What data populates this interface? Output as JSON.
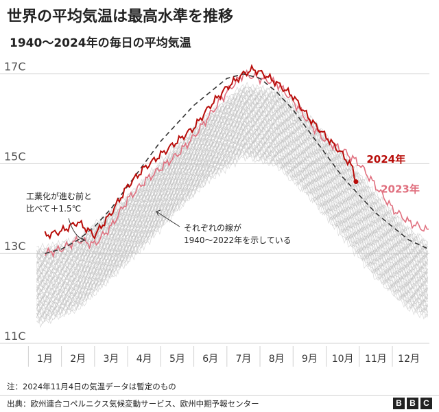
{
  "title": "世界の平均気温は最高水準を推移",
  "subtitle": "1940〜2024年の毎日の平均気温",
  "note": "注：2024年11月4日の気温データは暫定のもの",
  "source": "出典：欧州連合コペルニクス気候変動サービス、欧州中期予報センター",
  "logo": [
    "B",
    "B",
    "C"
  ],
  "chart_data": {
    "type": "line",
    "ylim": [
      11,
      17.3
    ],
    "yticks": [
      {
        "value": 11,
        "label": "11C"
      },
      {
        "value": 13,
        "label": "13C"
      },
      {
        "value": 15,
        "label": "15C"
      },
      {
        "value": 17,
        "label": "17C"
      }
    ],
    "months": [
      "1月",
      "2月",
      "3月",
      "4月",
      "5月",
      "6月",
      "7月",
      "8月",
      "9月",
      "10月",
      "11月",
      "12月"
    ],
    "grid": true,
    "colors": {
      "y2024": "#b80c09",
      "y2023": "#e0707f",
      "history": "#b8b8b8",
      "baseline": "#333333"
    },
    "series": [
      {
        "name": "2024年",
        "month_points": [
          [
            1,
            13.4
          ],
          [
            1.5,
            13.5
          ],
          [
            2,
            13.7
          ],
          [
            2.5,
            13.4
          ],
          [
            3,
            13.9
          ],
          [
            3.5,
            14.5
          ],
          [
            4,
            14.9
          ],
          [
            4.5,
            15.2
          ],
          [
            5,
            15.5
          ],
          [
            5.5,
            15.8
          ],
          [
            6,
            16.3
          ],
          [
            6.5,
            16.7
          ],
          [
            7,
            17.0
          ],
          [
            7.3,
            17.1
          ],
          [
            7.6,
            17.0
          ],
          [
            8,
            16.8
          ],
          [
            8.5,
            16.5
          ],
          [
            9,
            16.0
          ],
          [
            9.5,
            15.6
          ],
          [
            10,
            15.2
          ],
          [
            10.3,
            14.9
          ],
          [
            10.4,
            14.6
          ]
        ]
      },
      {
        "name": "2023年",
        "month_points": [
          [
            1,
            13.0
          ],
          [
            1.5,
            13.1
          ],
          [
            2,
            13.3
          ],
          [
            2.5,
            13.2
          ],
          [
            3,
            13.6
          ],
          [
            3.5,
            14.2
          ],
          [
            4,
            14.6
          ],
          [
            4.5,
            14.9
          ],
          [
            5,
            15.2
          ],
          [
            5.5,
            15.6
          ],
          [
            6,
            16.1
          ],
          [
            6.5,
            16.6
          ],
          [
            7,
            17.0
          ],
          [
            7.5,
            16.9
          ],
          [
            8,
            16.8
          ],
          [
            8.5,
            16.4
          ],
          [
            9,
            15.9
          ],
          [
            9.5,
            15.5
          ],
          [
            10,
            15.3
          ],
          [
            10.5,
            15.0
          ],
          [
            11,
            14.5
          ],
          [
            11.5,
            14.0
          ],
          [
            12,
            13.7
          ],
          [
            12.6,
            13.5
          ]
        ]
      },
      {
        "name": "工業化前と比べて＋1.5℃",
        "month_points": [
          [
            1,
            13.0
          ],
          [
            1.5,
            13.1
          ],
          [
            2,
            13.3
          ],
          [
            2.5,
            13.6
          ],
          [
            3,
            14.0
          ],
          [
            3.5,
            14.5
          ],
          [
            4,
            15.0
          ],
          [
            4.5,
            15.5
          ],
          [
            5,
            15.9
          ],
          [
            5.5,
            16.3
          ],
          [
            6,
            16.6
          ],
          [
            6.5,
            16.9
          ],
          [
            7,
            17.0
          ],
          [
            7.5,
            16.9
          ],
          [
            8,
            16.6
          ],
          [
            8.5,
            16.2
          ],
          [
            9,
            15.7
          ],
          [
            9.5,
            15.2
          ],
          [
            10,
            14.7
          ],
          [
            10.5,
            14.3
          ],
          [
            11,
            13.9
          ],
          [
            11.5,
            13.6
          ],
          [
            12,
            13.3
          ],
          [
            12.6,
            13.1
          ]
        ]
      }
    ],
    "history": {
      "years": "1940〜2022年",
      "envelope_low": [
        [
          1,
          11.5
        ],
        [
          2,
          11.8
        ],
        [
          3,
          12.5
        ],
        [
          4,
          13.2
        ],
        [
          5,
          14.0
        ],
        [
          6,
          14.7
        ],
        [
          7,
          15.2
        ],
        [
          8,
          15.0
        ],
        [
          9,
          14.3
        ],
        [
          10,
          13.4
        ],
        [
          11,
          12.5
        ],
        [
          12,
          11.8
        ],
        [
          12.6,
          11.6
        ]
      ],
      "envelope_high": [
        [
          1,
          13.1
        ],
        [
          2,
          13.3
        ],
        [
          3,
          13.9
        ],
        [
          4,
          14.6
        ],
        [
          5,
          15.4
        ],
        [
          6,
          16.1
        ],
        [
          7,
          16.7
        ],
        [
          8,
          16.6
        ],
        [
          9,
          16.0
        ],
        [
          10,
          15.2
        ],
        [
          11,
          14.3
        ],
        [
          12,
          13.5
        ],
        [
          12.6,
          13.2
        ]
      ]
    },
    "annotations": {
      "baseline_label_line1": "工業化が進む前と",
      "baseline_label_line2": "比べて＋1.5℃",
      "history_label_line1": "それぞれの線が",
      "history_label_line2": "1940〜2022年を示している",
      "label_2024": "2024年",
      "label_2023": "2023年"
    }
  }
}
